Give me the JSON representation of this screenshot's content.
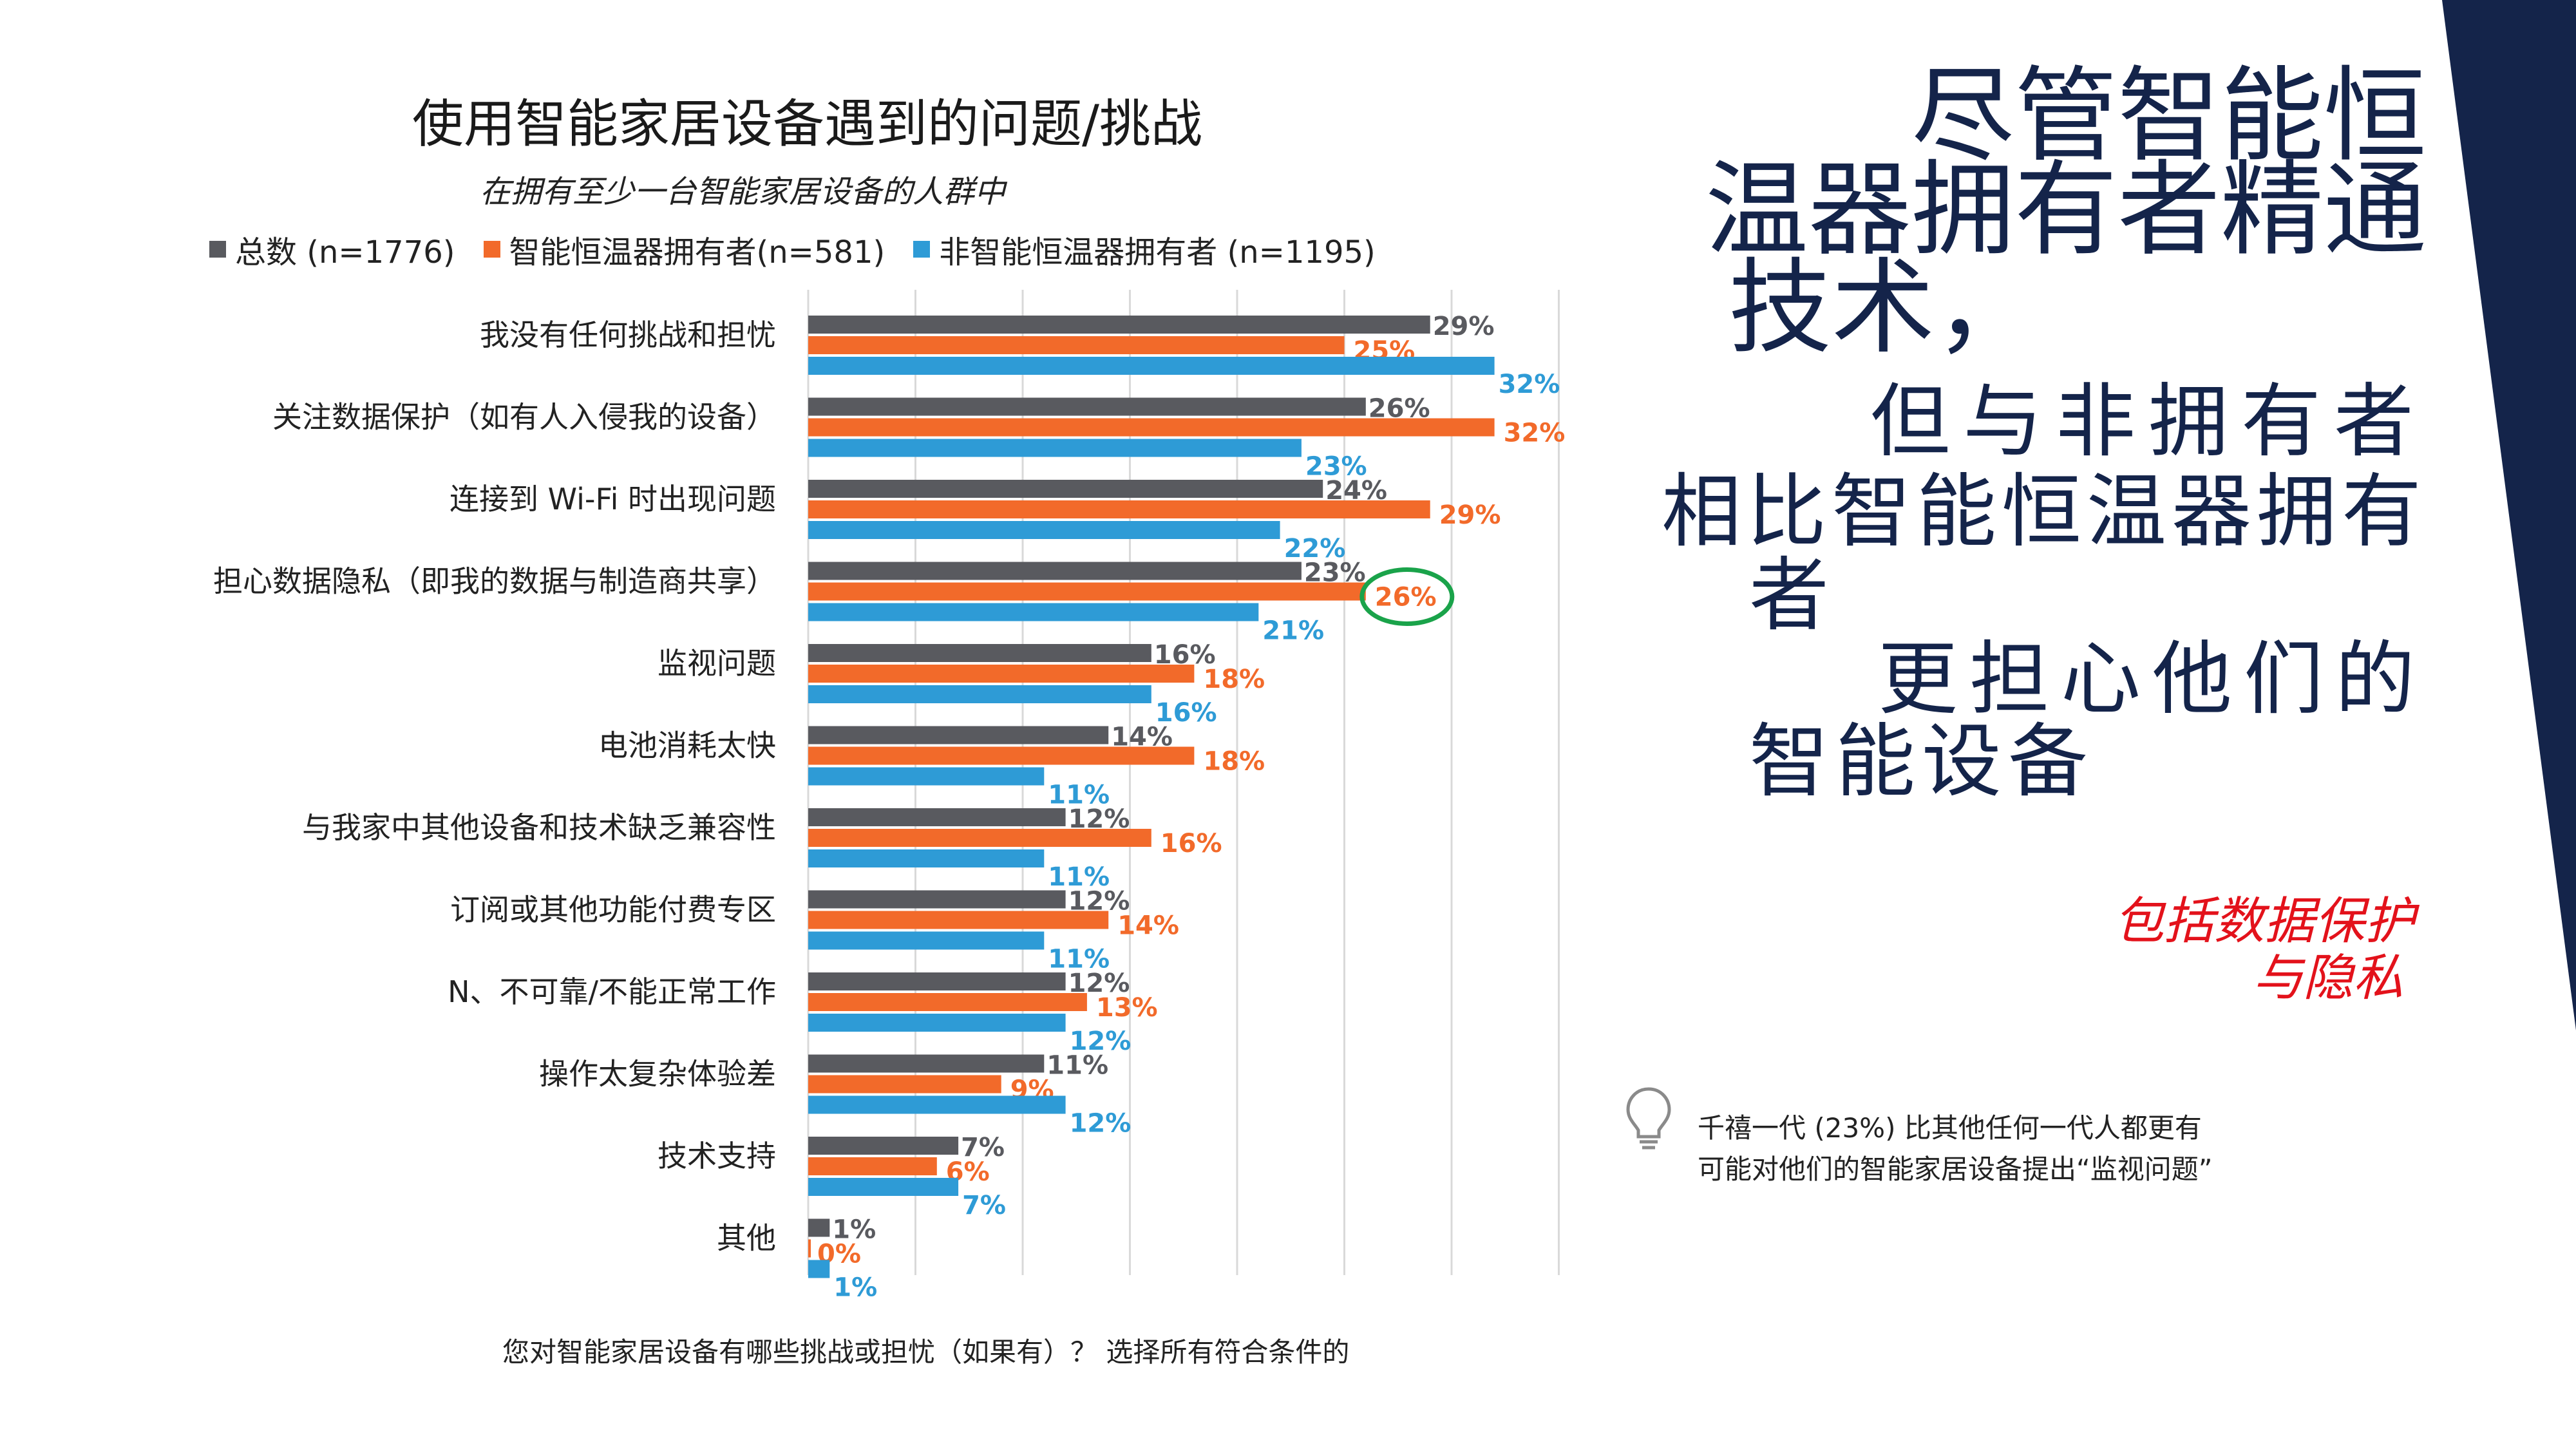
{
  "slide": {
    "headline_lines": [
      "尽管智能恒",
      "温器拥有者精通",
      "技术，",
      "但与非拥有者",
      "相比智能恒温器拥有",
      "者",
      "更担心他们的",
      "智能设备"
    ],
    "note_lines": [
      "包括数据保护",
      "与隐私"
    ],
    "insight_text": "千禧一代 (23%) 比其他任何一代人都更有可能对他们的智能家居设备提出“监视问题”",
    "icon": "lightbulb-icon",
    "colors": {
      "navy": "#14244a",
      "red": "#e3121b",
      "highlight": "#1aa34a"
    }
  },
  "chart_data": {
    "type": "bar",
    "orientation": "horizontal",
    "title": "使用智能家居设备遇到的问题/挑战",
    "subtitle": "在拥有至少一台智能家居设备的人群中",
    "question": "您对智能家居设备有哪些挑战或担忧（如果有）？ 选择所有符合条件的",
    "xlim": [
      0,
      35
    ],
    "grid": true,
    "legend_position": "top",
    "categories": [
      "我没有任何挑战和担忧",
      "关注数据保护（如有人入侵我的设备）",
      "连接到 Wi-Fi 时出现问题",
      "担心数据隐私（即我的数据与制造商共享）",
      "监视问题",
      "电池消耗太快",
      "与我家中其他设备和技术缺乏兼容性",
      "订阅或其他功能付费专区",
      "N、不可靠/不能正常工作",
      "操作太复杂体验差",
      "技术支持",
      "其他"
    ],
    "series": [
      {
        "name": "总数 (n=1776)",
        "color": "#595a5f",
        "values": [
          29,
          26,
          24,
          23,
          16,
          14,
          12,
          12,
          12,
          11,
          7,
          1
        ]
      },
      {
        "name": "智能恒温器拥有者(n=581)",
        "color": "#f26a2a",
        "values": [
          25,
          32,
          29,
          26,
          18,
          18,
          16,
          14,
          13,
          9,
          6,
          0
        ]
      },
      {
        "name": "非智能恒温器拥有者 (n=1195)",
        "color": "#2e9bd6",
        "values": [
          32,
          23,
          22,
          21,
          16,
          11,
          11,
          11,
          12,
          12,
          7,
          1
        ]
      }
    ],
    "highlight": {
      "category_index": 3,
      "series_index": 1
    }
  }
}
